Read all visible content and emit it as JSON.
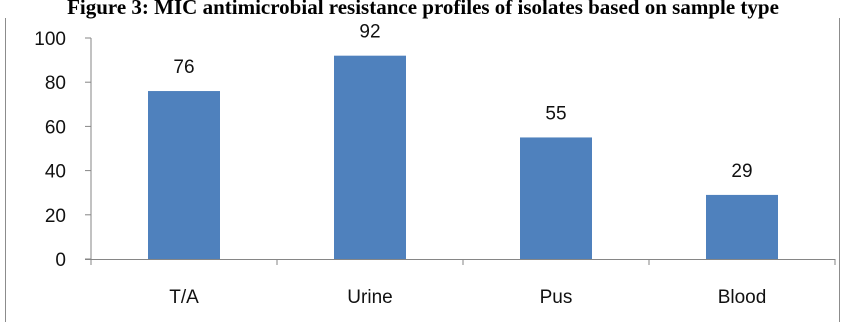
{
  "figure": {
    "title": "Figure 3: MIC antimicrobial resistance profiles of isolates based on sample type"
  },
  "chart_data": {
    "type": "bar",
    "categories": [
      "T/A",
      "Urine",
      "Pus",
      "Blood"
    ],
    "values": [
      76,
      92,
      55,
      29
    ],
    "data_labels": [
      "76",
      "92",
      "55",
      "29"
    ],
    "ylim": [
      0,
      100
    ],
    "yticks": [
      0,
      20,
      40,
      60,
      80,
      100
    ],
    "ytick_labels": [
      "0",
      "20",
      "40",
      "60",
      "80",
      "100"
    ],
    "bar_color": "#4f81bd",
    "grid": false,
    "legend": "none"
  }
}
